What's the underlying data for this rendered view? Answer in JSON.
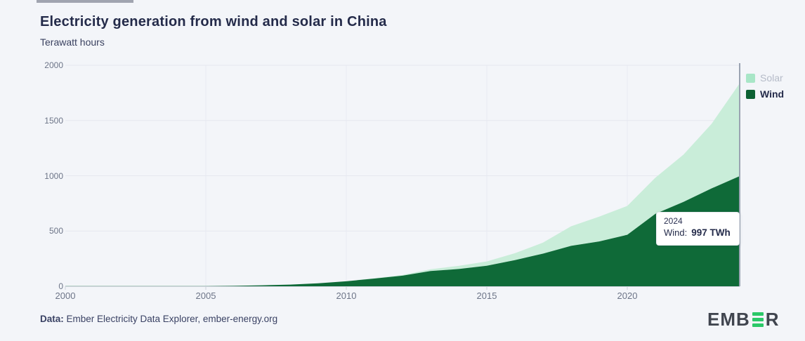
{
  "header": {
    "title": "Electricity generation from wind and solar in China",
    "subtitle": "Terawatt hours"
  },
  "chart_data": {
    "type": "area",
    "stacked": true,
    "title": "Electricity generation from wind and solar in China",
    "ylabel": "Terawatt hours",
    "x": [
      2000,
      2001,
      2002,
      2003,
      2004,
      2005,
      2006,
      2007,
      2008,
      2009,
      2010,
      2011,
      2012,
      2013,
      2014,
      2015,
      2016,
      2017,
      2018,
      2019,
      2020,
      2021,
      2022,
      2023,
      2024
    ],
    "series": [
      {
        "name": "Wind",
        "color": "#0f6a38",
        "values": [
          1,
          1,
          1,
          1,
          1,
          2,
          4,
          9,
          15,
          27,
          45,
          70,
          96,
          138,
          156,
          186,
          237,
          295,
          366,
          406,
          466,
          656,
          763,
          886,
          997
        ]
      },
      {
        "name": "Solar",
        "color": "#c9edd9",
        "values": [
          0,
          0,
          0,
          0,
          0,
          0,
          0,
          0,
          0,
          0,
          1,
          3,
          6,
          16,
          29,
          39,
          62,
          100,
          177,
          224,
          261,
          327,
          428,
          584,
          839
        ]
      }
    ],
    "stack_order_bottom_to_top": [
      "Wind",
      "Solar"
    ],
    "ylim": [
      0,
      2000
    ],
    "y_ticks": [
      0,
      500,
      1000,
      1500,
      2000
    ],
    "x_ticks": [
      2000,
      2005,
      2010,
      2015,
      2020
    ],
    "grid": true,
    "grid_color": "#e5e8ef",
    "vertical_grid_color": "#eaecf2",
    "axis_line_color": "#ccd1db",
    "hover_line_color": "#9aa3b2",
    "hovered_x": 2024,
    "legend_position": "top-right"
  },
  "legend": {
    "items": [
      {
        "label": "Solar",
        "swatch_color": "#a8e6c7",
        "dimmed": true
      },
      {
        "label": "Wind",
        "swatch_color": "#0c6133",
        "dimmed": false
      }
    ]
  },
  "tooltip": {
    "year": "2024",
    "series_label": "Wind:",
    "value": "997 TWh"
  },
  "footer": {
    "data_label": "Data:",
    "data_text": " Ember Electricity Data Explorer, ember-energy.org"
  },
  "logo": {
    "prefix": "EMB",
    "suffix": "R",
    "bar_color": "#2bc868",
    "text_color": "#40454f"
  }
}
